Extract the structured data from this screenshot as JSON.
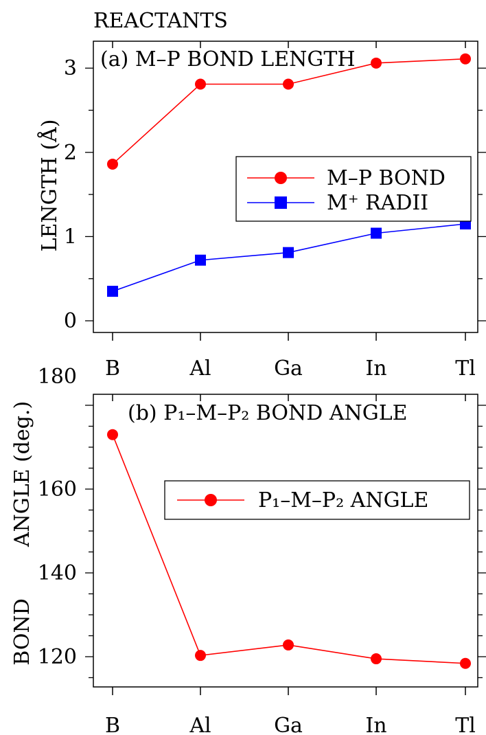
{
  "header": {
    "text": "REACTANTS"
  },
  "chart_data": [
    {
      "type": "line",
      "title": "(a) M–P BOND LENGTH",
      "ylabel": "LENGTH (Å)",
      "xlabel": "",
      "categories": [
        "B",
        "Al",
        "Ga",
        "In",
        "Tl"
      ],
      "ylim": [
        -0.2,
        3.5
      ],
      "yticks": [
        "0",
        "1",
        "2",
        "3"
      ],
      "grid": false,
      "legend_position": "right",
      "series": [
        {
          "name": "M–P BOND",
          "color": "#ff0000",
          "marker": "circle",
          "values": [
            1.86,
            2.81,
            2.81,
            3.06,
            3.11
          ]
        },
        {
          "name": "M⁺ RADII",
          "color": "#0000ff",
          "marker": "square",
          "values": [
            0.35,
            0.72,
            0.81,
            1.04,
            1.15
          ]
        }
      ]
    },
    {
      "type": "line",
      "title": "(b) P₁–M–P₂ BOND ANGLE",
      "ylabel": "BOND ANGLE (deg.)",
      "xlabel": "",
      "categories": [
        "B",
        "Al",
        "Ga",
        "In",
        "Tl"
      ],
      "ylim": [
        115,
        180
      ],
      "yticks": [
        "120",
        "140",
        "160",
        "180"
      ],
      "grid": false,
      "legend_position": "right",
      "series": [
        {
          "name": "P₁–M–P₂ ANGLE",
          "color": "#ff0000",
          "marker": "circle",
          "values": [
            173.0,
            120.3,
            122.8,
            119.5,
            118.4
          ]
        }
      ]
    }
  ]
}
